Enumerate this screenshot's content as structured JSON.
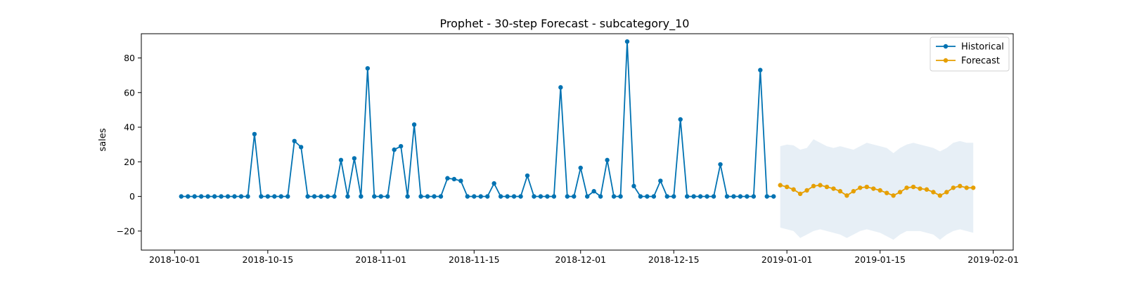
{
  "chart_data": {
    "type": "line",
    "title": "Prophet - 30-step Forecast - subcategory_10",
    "xlabel": "",
    "ylabel": "sales",
    "xlim": [
      "2018-09-26",
      "2019-02-04"
    ],
    "ylim": [
      -31,
      94
    ],
    "x_ticks": [
      "2018-10-01",
      "2018-10-15",
      "2018-11-01",
      "2018-11-15",
      "2018-12-01",
      "2018-12-15",
      "2019-01-01",
      "2019-01-15",
      "2019-02-01"
    ],
    "y_ticks": [
      -20,
      0,
      20,
      40,
      60,
      80
    ],
    "grid": false,
    "legend": "top-right",
    "series": [
      {
        "name": "Historical",
        "color": "#0072b2",
        "start": "2018-10-02",
        "values": [
          0,
          0,
          0,
          0,
          0,
          0,
          0,
          0,
          0,
          0,
          0,
          36,
          0,
          0,
          0,
          0,
          0,
          32,
          28.5,
          0,
          0,
          0,
          0,
          0,
          21,
          0,
          22,
          0,
          74,
          0,
          0,
          0,
          27,
          29,
          0,
          41.5,
          0,
          0,
          0,
          0,
          10.5,
          10,
          9,
          0,
          0,
          0,
          0,
          7.5,
          0,
          0,
          0,
          0,
          12,
          0,
          0,
          0,
          0,
          63,
          0,
          0,
          16.5,
          0,
          3,
          0,
          21,
          0,
          0,
          89.5,
          6,
          0,
          0,
          0,
          9,
          0,
          0,
          44.5,
          0,
          0,
          0,
          0,
          0,
          18.5,
          0,
          0,
          0,
          0,
          0,
          73,
          0,
          0
        ]
      },
      {
        "name": "Forecast",
        "color": "#e69f00",
        "start": "2018-12-31",
        "values": [
          6.5,
          5.5,
          4,
          1.5,
          3.5,
          6,
          6.5,
          5.5,
          4.5,
          3,
          0.5,
          3,
          5,
          5.5,
          4.5,
          3.5,
          2,
          0.5,
          2.5,
          5,
          5.5,
          4.5,
          4,
          2.5,
          0.5,
          2.5,
          5,
          6,
          5,
          5
        ],
        "lower": [
          -18,
          -19,
          -20,
          -24,
          -22,
          -20,
          -19,
          -20,
          -21,
          -22,
          -24,
          -22,
          -20,
          -19,
          -20,
          -21,
          -23,
          -25,
          -22,
          -20,
          -20,
          -20,
          -21,
          -22,
          -25,
          -22,
          -20,
          -19,
          -20,
          -21
        ],
        "upper": [
          29,
          30,
          29.5,
          27,
          28,
          33,
          31,
          29,
          28,
          29,
          28,
          27,
          29,
          31,
          30,
          29,
          28,
          25,
          28,
          30,
          31,
          30,
          29,
          28,
          26,
          28,
          31,
          32,
          31,
          31
        ]
      }
    ]
  }
}
